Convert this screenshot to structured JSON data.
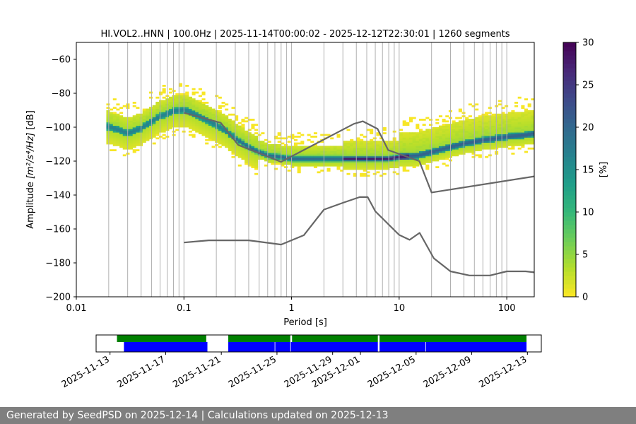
{
  "chart_data": [
    {
      "type": "heatmap",
      "title": "HI.VOL2..HNN | 100.0Hz | 2025-11-14T00:00:02 - 2025-12-12T22:30:01 | 1260 segments",
      "xlabel": "Period [s]",
      "ylabel_prefix": "Amplitude ",
      "ylabel_math": "[m²/s⁴/Hz]",
      "ylabel_suffix": " [dB]",
      "x_scale": "log",
      "xlim": [
        0.01,
        180
      ],
      "ylim": [
        -200,
        -50
      ],
      "x_ticks": [
        0.01,
        0.1,
        1,
        10,
        100
      ],
      "x_tick_labels": [
        "0.01",
        "0.1",
        "1",
        "10",
        "100"
      ],
      "y_ticks": [
        -200,
        -180,
        -160,
        -140,
        -120,
        -100,
        -80,
        -60
      ],
      "y_tick_labels": [
        "−200",
        "−180",
        "−160",
        "−140",
        "−120",
        "−100",
        "−80",
        "−60"
      ],
      "grid": "x",
      "colorbar": {
        "label": "[%]",
        "range": [
          0,
          30
        ],
        "ticks": [
          0,
          5,
          10,
          15,
          20,
          25,
          30
        ],
        "tick_labels": [
          "0",
          "5",
          "10",
          "15",
          "20",
          "25",
          "30"
        ],
        "colormap": [
          "#fde725",
          "#b5de2b",
          "#6ece58",
          "#35b779",
          "#1f9e89",
          "#26828e",
          "#31688e",
          "#3e4989",
          "#482878",
          "#440154"
        ]
      },
      "psd_mode": {
        "period": [
          0.02,
          0.025,
          0.03,
          0.04,
          0.05,
          0.06,
          0.08,
          0.1,
          0.12,
          0.15,
          0.2,
          0.25,
          0.3,
          0.4,
          0.5,
          0.6,
          0.8,
          1,
          1.5,
          2,
          3,
          4,
          5,
          6,
          8,
          10,
          15,
          20,
          30,
          40,
          50,
          60,
          80,
          100,
          150,
          180
        ],
        "amplitude_db": [
          -100,
          -102,
          -104,
          -101,
          -97,
          -94,
          -91,
          -90,
          -92,
          -95,
          -99,
          -103,
          -107,
          -112,
          -115,
          -117,
          -118,
          -119,
          -119,
          -119,
          -119,
          -119,
          -119,
          -119,
          -119,
          -118,
          -117,
          -115,
          -112,
          -110,
          -109,
          -108,
          -107,
          -106,
          -105,
          -104
        ]
      },
      "noise_models": [
        {
          "period": [
            0.1,
            0.17,
            0.4,
            0.8,
            1.3,
            2,
            3,
            4.3,
            5.1,
            6,
            10,
            12.5,
            15.5,
            21,
            30,
            45,
            70,
            100,
            150,
            180
          ],
          "amplitude_db": [
            -168,
            -166.7,
            -166.7,
            -169.2,
            -163.7,
            -148.6,
            -144.6,
            -141.2,
            -141.2,
            -149.6,
            -163.5,
            -166.4,
            -162.3,
            -177.3,
            -185,
            -187.4,
            -187.4,
            -185,
            -185,
            -185.6
          ]
        },
        {
          "period": [
            0.1,
            0.22,
            0.32,
            0.8,
            3.8,
            4.6,
            6.3,
            7.9,
            15.4,
            20,
            180
          ],
          "amplitude_db": [
            -91.5,
            -97.4,
            -110.5,
            -120.4,
            -98.0,
            -96.5,
            -101.0,
            -113.5,
            -120.0,
            -138.5,
            -129.0
          ]
        }
      ]
    },
    {
      "type": "timeline",
      "x_ticks": [
        "2025-11-13",
        "2025-11-17",
        "2025-11-21",
        "2025-11-25",
        "2025-11-29",
        "2025-12-01",
        "2025-12-05",
        "2025-12-09",
        "2025-12-13"
      ],
      "x_range": [
        "2025-11-12",
        "2025-12-14"
      ],
      "colors": {
        "data": "#0000ff",
        "psd": "#008000",
        "gap": "#ffffff"
      },
      "data_availability": [
        [
          "2025-11-14T00:00",
          "2025-11-20T00:00"
        ],
        [
          "2025-11-21T12:00",
          "2025-11-24T20:00"
        ],
        [
          "2025-11-24T21:00",
          "2025-11-25T23:00"
        ],
        [
          "2025-11-26T00:00",
          "2025-12-02T06:00"
        ],
        [
          "2025-12-02T09:00",
          "2025-12-05T16:00"
        ],
        [
          "2025-12-05T17:00",
          "2025-12-12T22:30"
        ]
      ],
      "psd_coverage": [
        [
          "2025-11-13T12:00",
          "2025-11-19T22:00"
        ],
        [
          "2025-11-21T12:00",
          "2025-11-25T23:00"
        ],
        [
          "2025-11-26T02:00",
          "2025-12-02T06:00"
        ],
        [
          "2025-12-02T09:00",
          "2025-12-12T22:30"
        ]
      ]
    }
  ],
  "footer": "Generated by SeedPSD on 2025-12-14 | Calculations updated on 2025-12-13"
}
